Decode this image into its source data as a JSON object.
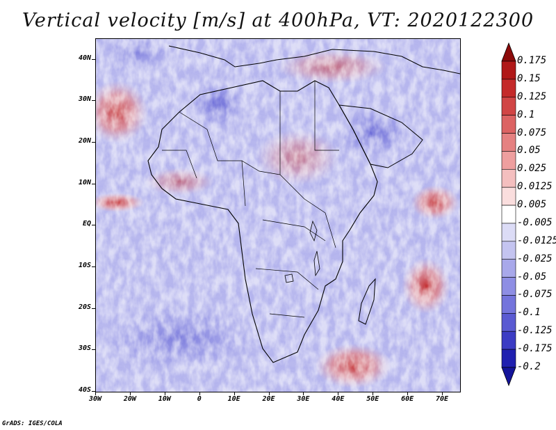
{
  "title": "Vertical velocity [m/s] at 400hPa, VT: 2020122300",
  "footer": "GrADS: IGES/COLA",
  "map": {
    "lat_labels": [
      "40N",
      "30N",
      "20N",
      "10N",
      "EQ",
      "10S",
      "20S",
      "30S",
      "40S"
    ],
    "lat_values": [
      40,
      30,
      20,
      10,
      0,
      -10,
      -20,
      -30,
      -40
    ],
    "lon_labels": [
      "30W",
      "20W",
      "10W",
      "0",
      "10E",
      "20E",
      "30E",
      "40E",
      "50E",
      "60E",
      "70E"
    ],
    "lon_values": [
      -30,
      -20,
      -10,
      0,
      10,
      20,
      30,
      40,
      50,
      60,
      70
    ],
    "lon_range": [
      -30,
      75
    ],
    "lat_range": [
      -40,
      45
    ]
  },
  "colorbar": {
    "labels": [
      "0.175",
      "0.15",
      "0.125",
      "0.1",
      "0.075",
      "0.05",
      "0.025",
      "0.0125",
      "0.005",
      "-0.005",
      "-0.0125",
      "-0.025",
      "-0.05",
      "-0.075",
      "-0.1",
      "-0.125",
      "-0.175",
      "-0.2"
    ],
    "colors": [
      "#8b0a0a",
      "#b01818",
      "#c42a2a",
      "#d14545",
      "#dc6363",
      "#e58181",
      "#ee9f9f",
      "#f4bfbf",
      "#fadede",
      "#ffffff",
      "#dcdcf6",
      "#c4c4f0",
      "#a8a8ea",
      "#8e8ee4",
      "#7474dc",
      "#5a5ad2",
      "#3c3cc4",
      "#2020b0",
      "#14149a"
    ]
  }
}
